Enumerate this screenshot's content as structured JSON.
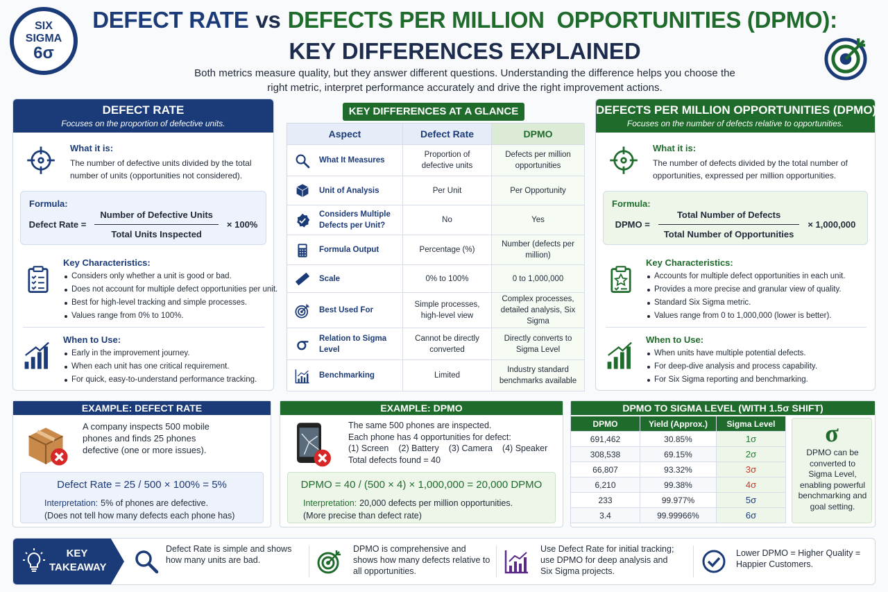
{
  "header": {
    "logo": [
      "SIX",
      "SIGMA",
      "6σ"
    ],
    "title_a": "DEFECT RATE",
    "title_vs": "vs",
    "title_b": "DEFECTS PER MILLION  OPPORTUNITIES (DPMO):",
    "title_2": "KEY DIFFERENCES EXPLAINED",
    "subtitle": [
      "Both metrics measure quality, but they answer different questions. Understanding the difference helps you choose the",
      "right metric, interpret performance accurately and drive the right improvement actions."
    ]
  },
  "defect_rate": {
    "title": "DEFECT RATE",
    "subtitle": "Focuses on the proportion of defective units.",
    "what_heading": "What it is:",
    "what_text": "The number of defective units divided by the total number of units (opportunities not considered).",
    "formula_heading": "Formula:",
    "formula_lhs": "Defect Rate =",
    "numerator": "Number of Defective Units",
    "denominator": "Total Units Inspected",
    "multiplier": "× 100%",
    "characteristics_heading": "Key Characteristics:",
    "characteristics": [
      "Considers only whether a unit is good or bad.",
      "Does not account for multiple defect opportunities per unit.",
      "Best for high-level tracking and simple processes.",
      "Values range from 0% to 100%."
    ],
    "when_heading": "When to Use:",
    "when": [
      "Early in the improvement journey.",
      "When each unit has one critical requirement.",
      "For quick, easy-to-understand performance tracking."
    ]
  },
  "dpmo": {
    "title": "DEFECTS PER MILLION OPPORTUNITIES (DPMO)",
    "subtitle": "Focuses on the number of defects relative to opportunities.",
    "what_heading": "What it is:",
    "what_text": "The number of defects divided by the total number of opportunities, expressed per million opportunities.",
    "formula_heading": "Formula:",
    "formula_lhs": "DPMO =",
    "numerator": "Total Number of Defects",
    "denominator": "Total Number of Opportunities",
    "multiplier": "× 1,000,000",
    "characteristics_heading": "Key Characteristics:",
    "characteristics": [
      "Accounts for multiple defect opportunities in each unit.",
      "Provides a more precise and granular view of quality.",
      "Standard Six Sigma metric.",
      "Values range from 0 to 1,000,000 (lower is better)."
    ],
    "when_heading": "When to Use:",
    "when": [
      "When units have multiple potential defects.",
      "For deep-dive analysis and process capability.",
      "For Six Sigma reporting and benchmarking."
    ]
  },
  "comparison": {
    "title": "KEY DIFFERENCES AT A GLANCE",
    "header": [
      "Aspect",
      "Defect Rate",
      "DPMO"
    ],
    "rows": [
      [
        "What It Measures",
        "Proportion of defective units",
        "Defects per million opportunities"
      ],
      [
        "Unit of Analysis",
        "Per Unit",
        "Per Opportunity"
      ],
      [
        "Considers Multiple Defects per Unit?",
        "No",
        "Yes"
      ],
      [
        "Formula Output",
        "Percentage (%)",
        "Number (defects per million)"
      ],
      [
        "Scale",
        "0% to 100%",
        "0 to 1,000,000"
      ],
      [
        "Best Used For",
        "Simple processes, high-level view",
        "Complex processes, detailed analysis, Six Sigma"
      ],
      [
        "Relation to Sigma Level",
        "Cannot be directly converted",
        "Directly converts to Sigma Level"
      ],
      [
        "Benchmarking",
        "Limited",
        "Industry standard benchmarks available"
      ]
    ]
  },
  "example_defect_rate": {
    "title": "EXAMPLE: DEFECT RATE",
    "text": "A company inspects 500 mobile phones and finds 25 phones defective (one or more issues).",
    "calculation": "Defect Rate = 25 / 500 × 100% = 5%",
    "interpretation_label": "Interpretation:",
    "interpretation": "5% of phones are defective.",
    "note": "(Does not tell how many defects each phone has)"
  },
  "example_dpmo": {
    "title": "EXAMPLE: DPMO",
    "lines": [
      "The same 500 phones are inspected.",
      "Each phone has 4 opportunities for defect:"
    ],
    "opportunities": [
      "(1) Screen",
      "(2) Battery",
      "(3) Camera",
      "(4) Speaker"
    ],
    "total": "Total defects found = 40",
    "calculation": "DPMO = 40 / (500 × 4) × 1,000,000 = 20,000 DPMO",
    "interpretation_label": "Interpretation:",
    "interpretation": "20,000 defects per million opportunities.",
    "note": "(More precise than defect rate)"
  },
  "sigma_conversion": {
    "title": "DPMO TO SIGMA LEVEL (WITH 1.5σ SHIFT)",
    "header": [
      "DPMO",
      "Yield (Approx.)",
      "Sigma Level"
    ],
    "rows": [
      [
        "691,462",
        "30.85%",
        "1σ"
      ],
      [
        "308,538",
        "69.15%",
        "2σ"
      ],
      [
        "66,807",
        "93.32%",
        "3σ"
      ],
      [
        "6,210",
        "99.38%",
        "4σ"
      ],
      [
        "233",
        "99.977%",
        "5σ"
      ],
      [
        "3.4",
        "99.99966%",
        "6σ"
      ]
    ],
    "symbol": "σ",
    "note": "DPMO can be converted to Sigma Level, enabling powerful benchmarking and goal setting."
  },
  "takeaway": {
    "label": [
      "KEY",
      "TAKEAWAY"
    ],
    "items": [
      "Defect Rate is simple and shows how many units are bad.",
      "DPMO is comprehensive and shows how many defects relative to all opportunities.",
      "Use Defect Rate for initial tracking; use DPMO for deep analysis and Six Sigma projects.",
      "Lower DPMO = Higher Quality = Happier Customers."
    ]
  }
}
